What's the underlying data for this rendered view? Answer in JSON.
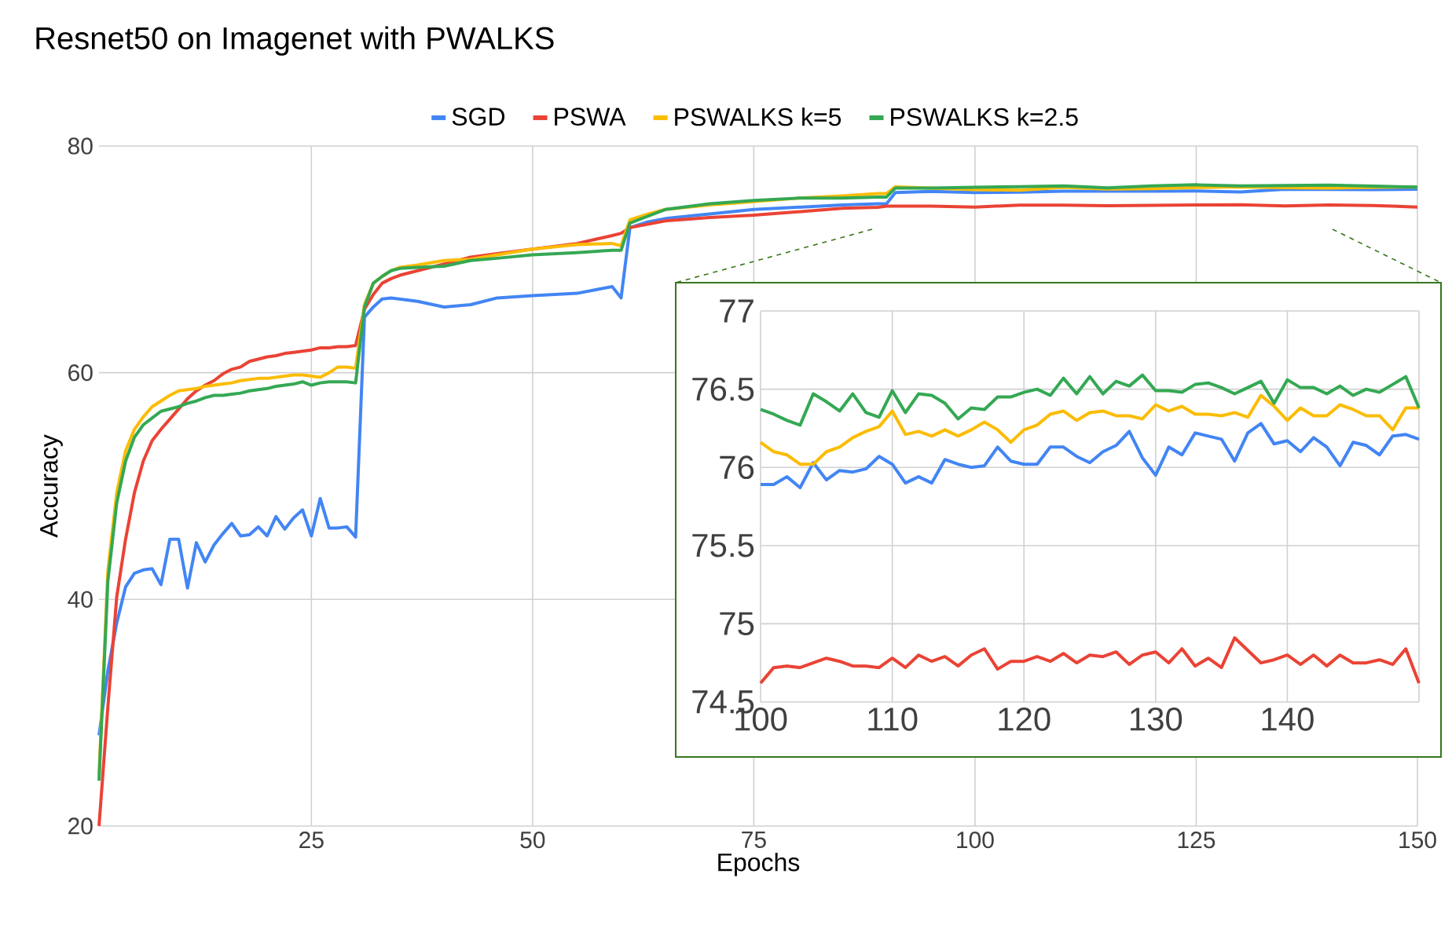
{
  "chart_data": [
    {
      "type": "line",
      "title": "Resnet50 on Imagenet with PWALKS",
      "xlabel": "Epochs",
      "ylabel": "Accuracy",
      "x": [
        1,
        2,
        3,
        4,
        5,
        6,
        7,
        8,
        9,
        10,
        11,
        12,
        13,
        14,
        15,
        16,
        17,
        18,
        19,
        20,
        21,
        22,
        23,
        24,
        25,
        26,
        27,
        28,
        29,
        30,
        31,
        32,
        33,
        34,
        35,
        37,
        40,
        43,
        46,
        50,
        55,
        59,
        60,
        61,
        63,
        65,
        70,
        75,
        80,
        85,
        89,
        90,
        91,
        95,
        100,
        105,
        110,
        115,
        120,
        125,
        130,
        135,
        140,
        145,
        150
      ],
      "series": [
        {
          "name": "SGD",
          "color": "#4285f4",
          "values": [
            28,
            33.7,
            37.9,
            41.1,
            42.3,
            42.6,
            42.7,
            41.3,
            45.3,
            45.3,
            41.0,
            45.0,
            43.3,
            44.8,
            45.8,
            46.7,
            45.6,
            45.7,
            46.4,
            45.6,
            47.3,
            46.2,
            47.2,
            47.9,
            45.6,
            48.9,
            46.3,
            46.3,
            46.4,
            45.5,
            64.9,
            65.8,
            66.5,
            66.6,
            66.5,
            66.3,
            65.8,
            66.0,
            66.6,
            66.8,
            67.0,
            67.6,
            66.6,
            72.8,
            73.3,
            73.6,
            74.0,
            74.4,
            74.6,
            74.8,
            74.9,
            74.9,
            75.9,
            76.0,
            75.89,
            75.92,
            76.02,
            76.02,
            76.02,
            76.03,
            75.95,
            76.18,
            76.17,
            76.16,
            76.18
          ]
        },
        {
          "name": "PSWA",
          "color": "#ea4335",
          "values": [
            20,
            30.5,
            40.2,
            45.3,
            49.4,
            52.2,
            54.0,
            55.0,
            55.9,
            56.8,
            57.7,
            58.4,
            58.9,
            59.3,
            59.9,
            60.3,
            60.5,
            61.0,
            61.2,
            61.4,
            61.5,
            61.7,
            61.8,
            61.9,
            62.0,
            62.2,
            62.2,
            62.3,
            62.3,
            62.4,
            65.6,
            66.9,
            67.9,
            68.3,
            68.6,
            69.0,
            69.6,
            70.2,
            70.5,
            70.9,
            71.4,
            72.1,
            72.3,
            72.8,
            73.1,
            73.4,
            73.7,
            73.9,
            74.2,
            74.5,
            74.6,
            74.7,
            74.7,
            74.7,
            74.62,
            74.78,
            74.78,
            74.73,
            74.76,
            74.8,
            74.82,
            74.72,
            74.8,
            74.75,
            74.62
          ]
        },
        {
          "name": "PSWALKS k=5",
          "color": "#fbbc04",
          "values": [
            24.5,
            42.5,
            49.4,
            53.1,
            55.0,
            56.1,
            57.0,
            57.5,
            58.0,
            58.4,
            58.5,
            58.6,
            58.8,
            58.9,
            59.0,
            59.1,
            59.3,
            59.4,
            59.5,
            59.5,
            59.6,
            59.7,
            59.8,
            59.8,
            59.7,
            59.6,
            60.0,
            60.5,
            60.5,
            60.4,
            66.0,
            67.9,
            68.5,
            69.0,
            69.3,
            69.5,
            69.9,
            70.0,
            70.4,
            70.9,
            71.3,
            71.4,
            71.2,
            73.5,
            74.0,
            74.4,
            74.8,
            75.1,
            75.4,
            75.6,
            75.8,
            75.8,
            76.4,
            76.3,
            76.16,
            76.1,
            76.36,
            76.2,
            76.24,
            76.35,
            76.4,
            76.33,
            76.3,
            76.37,
            76.38
          ]
        },
        {
          "name": "PSWALKS k=2.5",
          "color": "#34a853",
          "values": [
            24,
            41.6,
            48.5,
            52.2,
            54.3,
            55.4,
            56.0,
            56.6,
            56.8,
            57.0,
            57.3,
            57.5,
            57.8,
            58.0,
            58.0,
            58.1,
            58.2,
            58.4,
            58.5,
            58.6,
            58.8,
            58.9,
            59.0,
            59.2,
            58.9,
            59.1,
            59.2,
            59.2,
            59.2,
            59.1,
            65.8,
            67.9,
            68.5,
            69.0,
            69.2,
            69.3,
            69.4,
            69.9,
            70.1,
            70.4,
            70.6,
            70.8,
            70.8,
            73.2,
            73.8,
            74.4,
            74.9,
            75.2,
            75.4,
            75.4,
            75.5,
            75.5,
            76.3,
            76.3,
            76.37,
            76.42,
            76.49,
            76.31,
            76.48,
            76.58,
            76.49,
            76.51,
            76.56,
            76.46,
            76.38
          ]
        }
      ],
      "xlim": [
        1,
        150
      ],
      "xticks": [
        25,
        50,
        75,
        100,
        125,
        150
      ],
      "ylim": [
        20,
        80
      ],
      "yticks": [
        20,
        40,
        60,
        80
      ],
      "grid": true,
      "legend": "top"
    },
    {
      "type": "line",
      "x": [
        100,
        101,
        102,
        103,
        104,
        105,
        106,
        107,
        108,
        109,
        110,
        111,
        112,
        113,
        114,
        115,
        116,
        117,
        118,
        119,
        120,
        121,
        122,
        123,
        124,
        125,
        126,
        127,
        128,
        129,
        130,
        131,
        132,
        133,
        134,
        135,
        136,
        137,
        138,
        139,
        140,
        141,
        142,
        143,
        144,
        145,
        146,
        147,
        148,
        149,
        150
      ],
      "series": [
        {
          "color": "#4285f4",
          "values": [
            75.89,
            75.89,
            75.94,
            75.87,
            76.03,
            75.92,
            75.98,
            75.97,
            75.99,
            76.07,
            76.02,
            75.9,
            75.94,
            75.9,
            76.05,
            76.02,
            76.0,
            76.01,
            76.13,
            76.04,
            76.02,
            76.02,
            76.13,
            76.13,
            76.07,
            76.03,
            76.1,
            76.14,
            76.23,
            76.06,
            75.95,
            76.13,
            76.08,
            76.22,
            76.2,
            76.18,
            76.04,
            76.22,
            76.28,
            76.15,
            76.17,
            76.1,
            76.19,
            76.13,
            76.01,
            76.16,
            76.14,
            76.08,
            76.2,
            76.21,
            76.18
          ]
        },
        {
          "color": "#ea4335",
          "values": [
            74.62,
            74.72,
            74.73,
            74.72,
            74.75,
            74.78,
            74.76,
            74.73,
            74.73,
            74.72,
            74.78,
            74.72,
            74.8,
            74.76,
            74.79,
            74.73,
            74.8,
            74.84,
            74.71,
            74.76,
            74.76,
            74.79,
            74.76,
            74.81,
            74.75,
            74.8,
            74.79,
            74.82,
            74.74,
            74.8,
            74.82,
            74.75,
            74.84,
            74.73,
            74.78,
            74.72,
            74.91,
            74.83,
            74.75,
            74.77,
            74.8,
            74.74,
            74.8,
            74.73,
            74.8,
            74.75,
            74.75,
            74.77,
            74.74,
            74.84,
            74.62
          ]
        },
        {
          "color": "#fbbc04",
          "values": [
            76.16,
            76.1,
            76.08,
            76.02,
            76.02,
            76.1,
            76.13,
            76.19,
            76.23,
            76.26,
            76.36,
            76.21,
            76.23,
            76.2,
            76.24,
            76.2,
            76.24,
            76.29,
            76.24,
            76.16,
            76.24,
            76.27,
            76.34,
            76.36,
            76.3,
            76.35,
            76.36,
            76.33,
            76.33,
            76.31,
            76.4,
            76.36,
            76.39,
            76.34,
            76.34,
            76.33,
            76.35,
            76.32,
            76.46,
            76.39,
            76.3,
            76.38,
            76.33,
            76.33,
            76.4,
            76.37,
            76.33,
            76.33,
            76.24,
            76.38,
            76.38
          ]
        },
        {
          "color": "#34a853",
          "values": [
            76.37,
            76.34,
            76.3,
            76.27,
            76.47,
            76.42,
            76.36,
            76.47,
            76.35,
            76.32,
            76.49,
            76.35,
            76.47,
            76.46,
            76.41,
            76.31,
            76.38,
            76.37,
            76.45,
            76.45,
            76.48,
            76.5,
            76.46,
            76.57,
            76.47,
            76.58,
            76.47,
            76.55,
            76.52,
            76.59,
            76.49,
            76.49,
            76.48,
            76.53,
            76.54,
            76.51,
            76.47,
            76.51,
            76.55,
            76.41,
            76.56,
            76.51,
            76.51,
            76.47,
            76.52,
            76.46,
            76.5,
            76.48,
            76.53,
            76.58,
            76.38
          ]
        }
      ],
      "xlim": [
        100,
        150
      ],
      "xticks": [
        100,
        110,
        120,
        130,
        140
      ],
      "ylim": [
        74.5,
        77
      ],
      "yticks": [
        74.5,
        75,
        75.5,
        76,
        76.5,
        77
      ],
      "grid": true
    }
  ]
}
